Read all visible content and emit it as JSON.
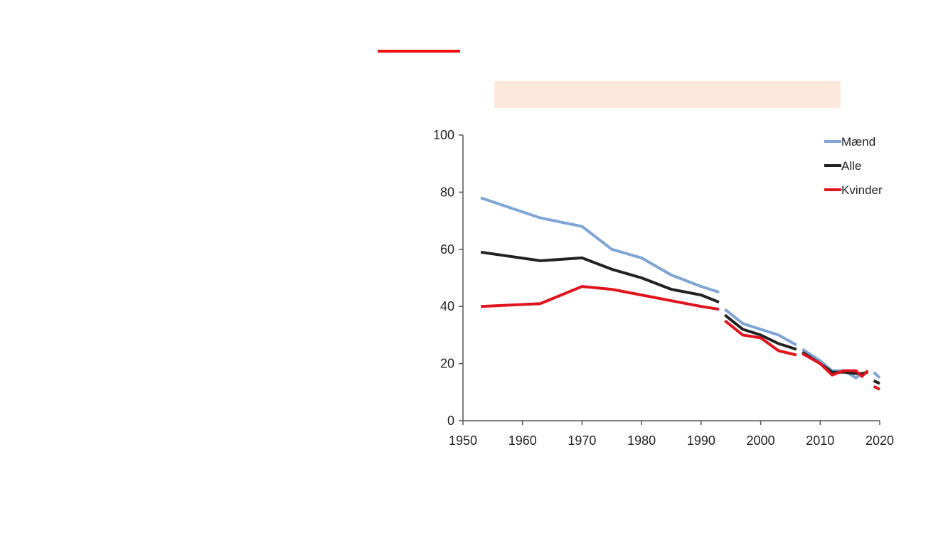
{
  "slide": {
    "accent_color": "#ee1111",
    "title_box_color": "#fde9dc",
    "title_text": ""
  },
  "chart_data": {
    "type": "line",
    "title": "",
    "xlabel": "",
    "ylabel": "",
    "xlim": [
      1950,
      2020
    ],
    "ylim": [
      0,
      100
    ],
    "xticks": [
      1950,
      1960,
      1970,
      1980,
      1990,
      2000,
      2010,
      2020
    ],
    "yticks": [
      0,
      20,
      40,
      60,
      80,
      100
    ],
    "grid": false,
    "legend_position": "top-right",
    "series": [
      {
        "name": "Mænd",
        "color": "#7fa5d4",
        "segments": [
          [
            [
              1953,
              78
            ],
            [
              1963,
              71
            ],
            [
              1970,
              68
            ],
            [
              1975,
              60
            ],
            [
              1980,
              57
            ],
            [
              1985,
              51
            ],
            [
              1990,
              47
            ],
            [
              1993,
              45
            ]
          ],
          [
            [
              1994,
              39
            ],
            [
              1997,
              34
            ],
            [
              2000,
              32
            ],
            [
              2003,
              30
            ],
            [
              2006,
              26.5
            ]
          ],
          [
            [
              2007,
              25
            ],
            [
              2010,
              21
            ],
            [
              2012,
              17.5
            ],
            [
              2014,
              17.5
            ],
            [
              2016,
              15
            ],
            [
              2017,
              16.5
            ],
            [
              2018,
              17
            ]
          ],
          [
            [
              2019,
              17
            ],
            [
              2020,
              15
            ]
          ]
        ]
      },
      {
        "name": "Alle",
        "color": "#222222",
        "segments": [
          [
            [
              1953,
              59
            ],
            [
              1963,
              56
            ],
            [
              1970,
              57
            ],
            [
              1975,
              53
            ],
            [
              1980,
              50
            ],
            [
              1985,
              46
            ],
            [
              1990,
              44
            ],
            [
              1993,
              41.5
            ]
          ],
          [
            [
              1994,
              37
            ],
            [
              1997,
              32
            ],
            [
              2000,
              30
            ],
            [
              2003,
              27
            ],
            [
              2006,
              25
            ]
          ],
          [
            [
              2007,
              24
            ],
            [
              2010,
              20
            ],
            [
              2012,
              17
            ],
            [
              2014,
              17
            ],
            [
              2016,
              16.5
            ],
            [
              2017,
              16.5
            ],
            [
              2018,
              17
            ]
          ],
          [
            [
              2019,
              14
            ],
            [
              2020,
              13
            ]
          ]
        ]
      },
      {
        "name": "Kvinder",
        "color": "#e0141e",
        "segments": [
          [
            [
              1953,
              40
            ],
            [
              1963,
              41
            ],
            [
              1970,
              47
            ],
            [
              1975,
              46
            ],
            [
              1980,
              44
            ],
            [
              1985,
              42
            ],
            [
              1990,
              40
            ],
            [
              1993,
              39
            ]
          ],
          [
            [
              1994,
              35
            ],
            [
              1997,
              30
            ],
            [
              2000,
              29
            ],
            [
              2003,
              24.5
            ],
            [
              2006,
              23
            ]
          ],
          [
            [
              2007,
              23.5
            ],
            [
              2010,
              20
            ],
            [
              2012,
              16
            ],
            [
              2014,
              17.5
            ],
            [
              2016,
              17.5
            ],
            [
              2017,
              15.5
            ],
            [
              2018,
              17.5
            ]
          ],
          [
            [
              2019,
              12
            ],
            [
              2020,
              11
            ]
          ]
        ]
      }
    ]
  }
}
